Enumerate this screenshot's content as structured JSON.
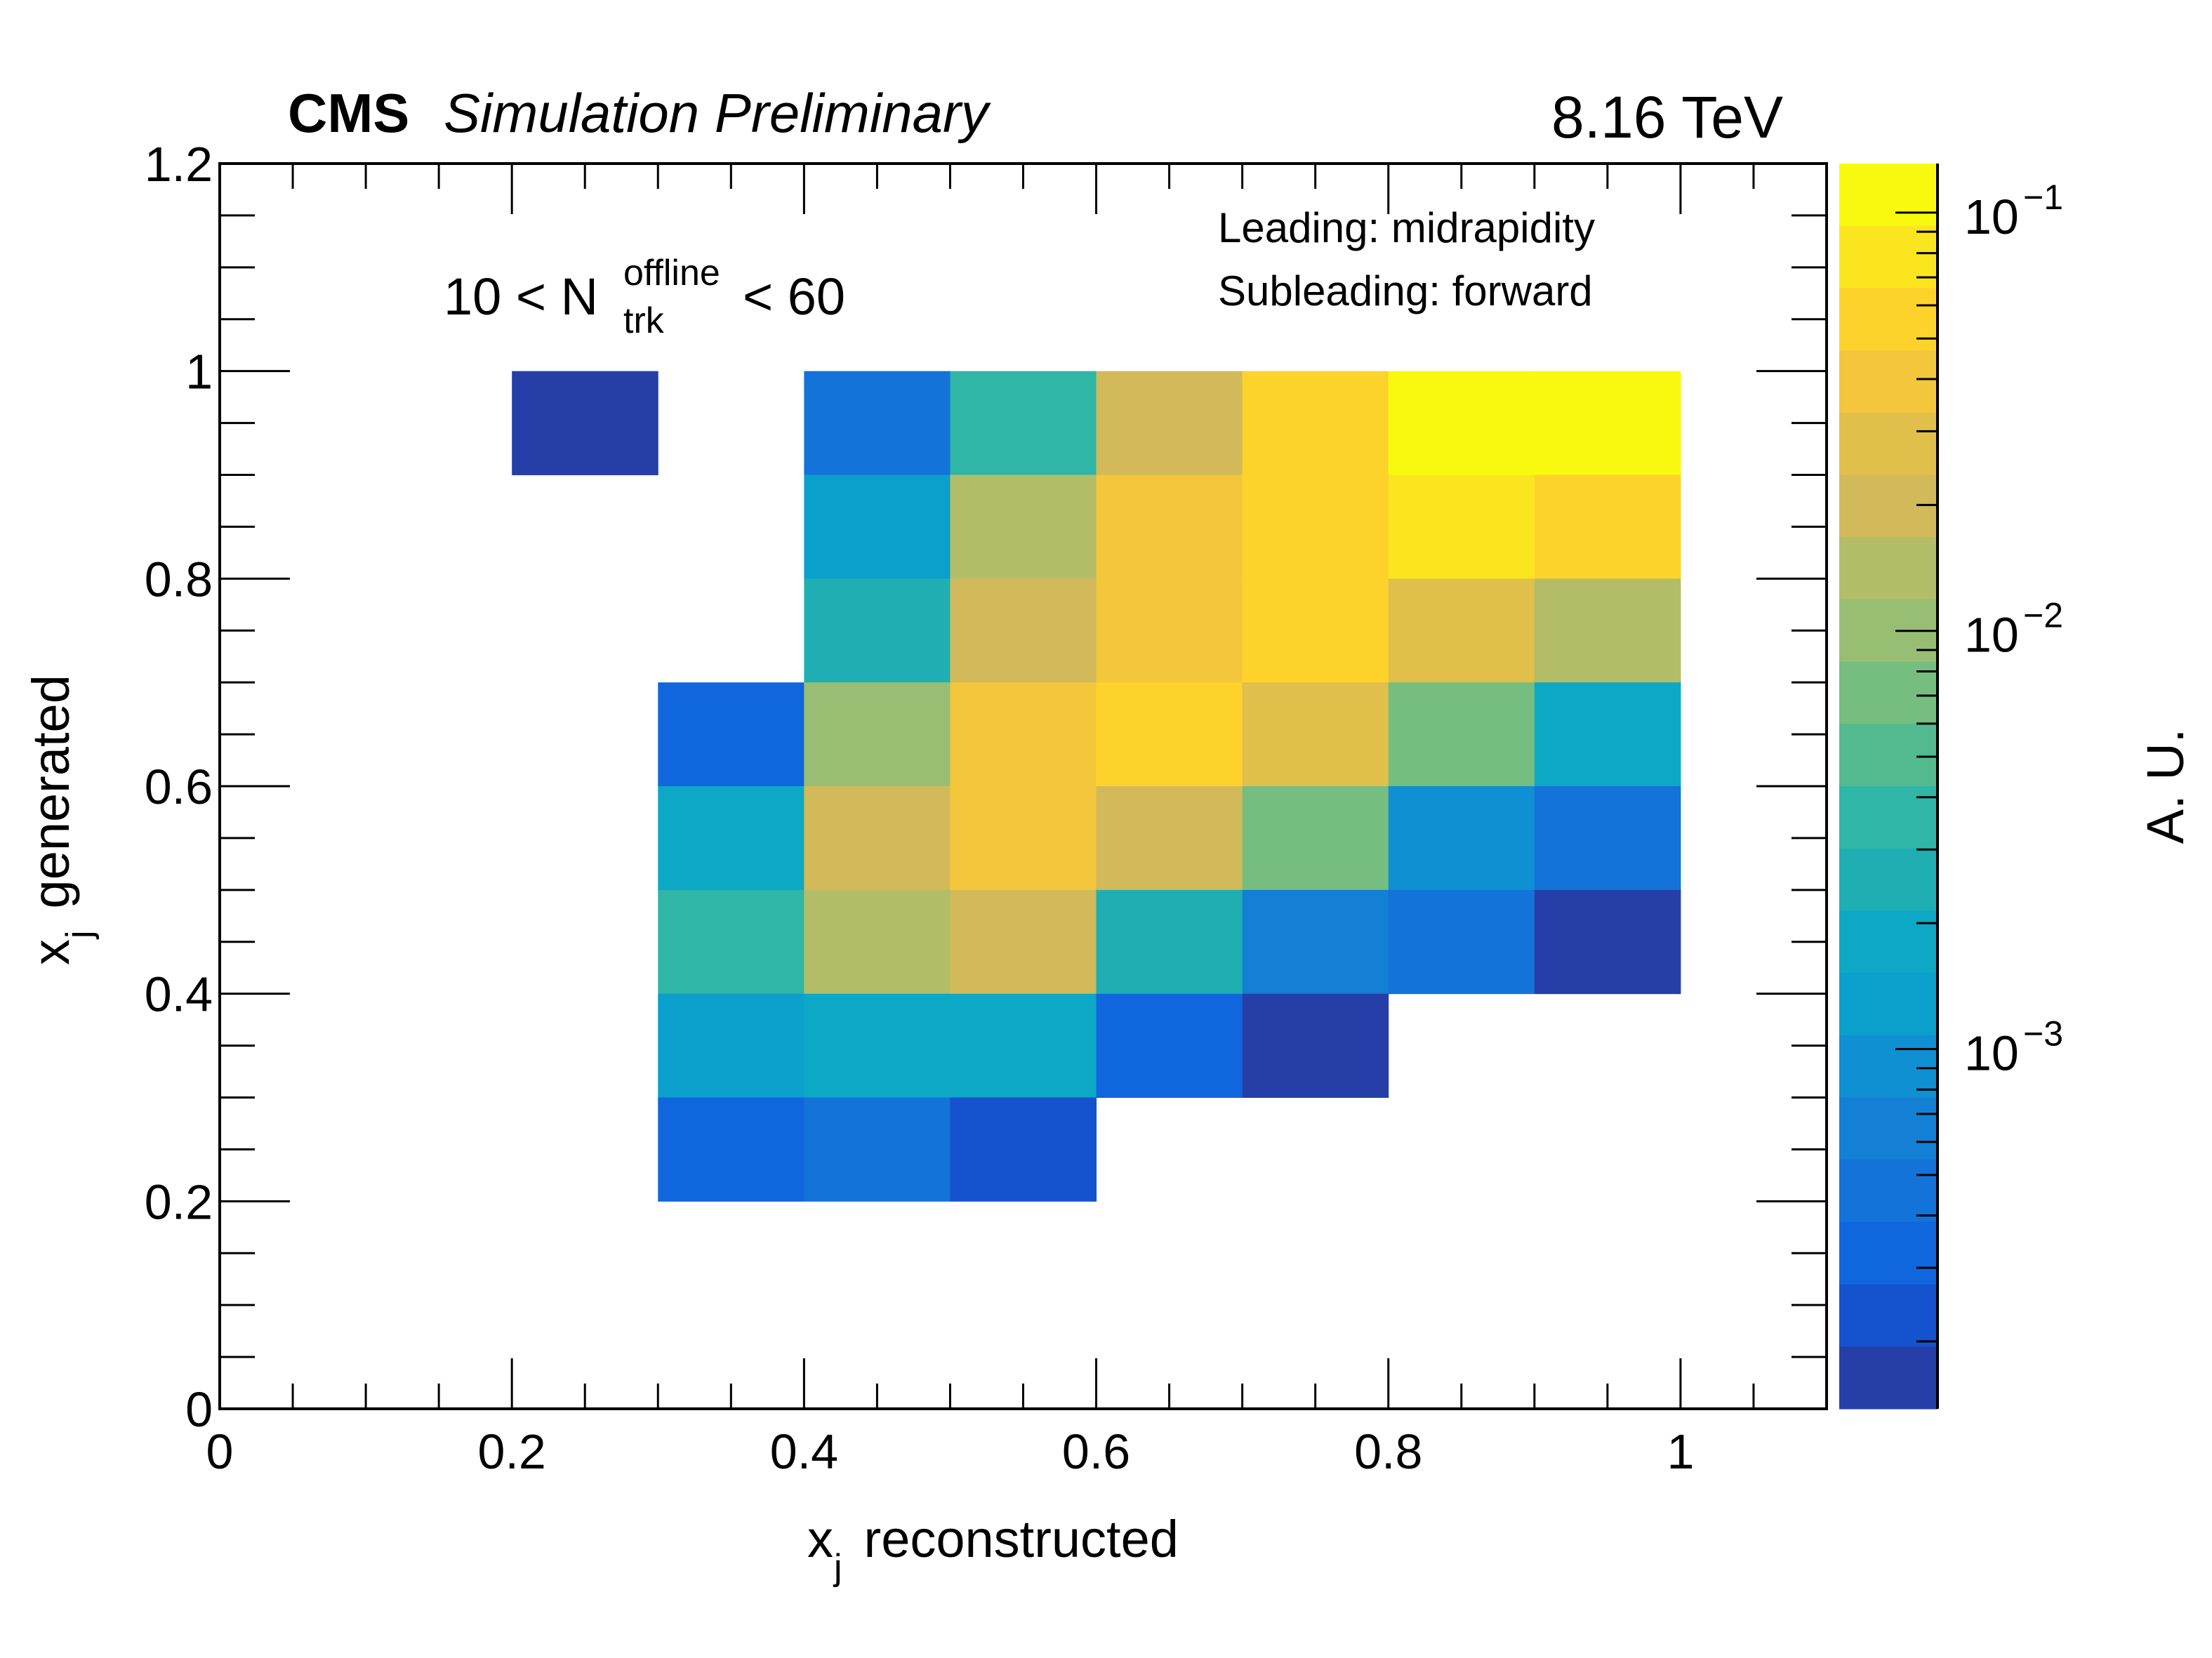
{
  "chart_data": {
    "type": "heatmap",
    "title_left": {
      "bold": "CMS",
      "italic": "Simulation Preliminary"
    },
    "title_right": "8.16 TeV",
    "xlabel": {
      "var": "x",
      "sub": "j",
      "rest": " reconstructed"
    },
    "ylabel": {
      "var": "x",
      "sub": "j",
      "rest": " generated"
    },
    "zlabel": "A. U.",
    "zscale": "log",
    "xlim": [
      0,
      1.1
    ],
    "ylim": [
      0,
      1.2
    ],
    "zlim": [
      0.000138,
      0.131
    ],
    "x_ticks": [
      {
        "value": 0,
        "label": "0"
      },
      {
        "value": 0.2,
        "label": "0.2"
      },
      {
        "value": 0.4,
        "label": "0.4"
      },
      {
        "value": 0.6,
        "label": "0.6"
      },
      {
        "value": 0.8,
        "label": "0.8"
      },
      {
        "value": 1.0,
        "label": "1"
      }
    ],
    "y_ticks": [
      {
        "value": 0,
        "label": "0"
      },
      {
        "value": 0.2,
        "label": "0.2"
      },
      {
        "value": 0.4,
        "label": "0.4"
      },
      {
        "value": 0.6,
        "label": "0.6"
      },
      {
        "value": 0.8,
        "label": "0.8"
      },
      {
        "value": 1.0,
        "label": "1"
      },
      {
        "value": 1.2,
        "label": "1.2"
      }
    ],
    "z_ticks": [
      {
        "value": 0.1,
        "base": "10",
        "exp": "−1"
      },
      {
        "value": 0.01,
        "base": "10",
        "exp": "−2"
      },
      {
        "value": 0.001,
        "base": "10",
        "exp": "−3"
      }
    ],
    "annotations": {
      "multiplicity": {
        "pre": "10 < N",
        "sup": "offline",
        "sub": "trk",
        "post": " < 60"
      },
      "lines": [
        "Leading: midrapidity",
        "Subleading: forward"
      ]
    },
    "bin_width": 0.1,
    "palette": [
      "#f9f90f",
      "#fbe51f",
      "#fdd32b",
      "#f3c63c",
      "#e1bf4b",
      "#d2ba5a",
      "#b3bd67",
      "#98be74",
      "#76bd80",
      "#53ba90",
      "#30b6a6",
      "#1fafb3",
      "#0da8c5",
      "#0aa0cb",
      "#0e90d2",
      "#137fd5",
      "#1373d9",
      "#1066dd",
      "#1552cd",
      "#263fa8"
    ],
    "cells": [
      {
        "x": 0.2,
        "y": 0.9,
        "z": 0.000163
      },
      {
        "x": 0.4,
        "y": 0.9,
        "z": 0.00046
      },
      {
        "x": 0.5,
        "y": 0.9,
        "z": 0.0037
      },
      {
        "x": 0.6,
        "y": 0.9,
        "z": 0.021
      },
      {
        "x": 0.7,
        "y": 0.9,
        "z": 0.059
      },
      {
        "x": 0.8,
        "y": 0.9,
        "z": 0.116
      },
      {
        "x": 0.9,
        "y": 0.9,
        "z": 0.116
      },
      {
        "x": 0.4,
        "y": 0.8,
        "z": 0.0013
      },
      {
        "x": 0.5,
        "y": 0.8,
        "z": 0.015
      },
      {
        "x": 0.6,
        "y": 0.8,
        "z": 0.042
      },
      {
        "x": 0.7,
        "y": 0.8,
        "z": 0.059
      },
      {
        "x": 0.8,
        "y": 0.8,
        "z": 0.083
      },
      {
        "x": 0.9,
        "y": 0.8,
        "z": 0.059
      },
      {
        "x": 0.4,
        "y": 0.7,
        "z": 0.0026
      },
      {
        "x": 0.5,
        "y": 0.7,
        "z": 0.021
      },
      {
        "x": 0.6,
        "y": 0.7,
        "z": 0.042
      },
      {
        "x": 0.7,
        "y": 0.7,
        "z": 0.059
      },
      {
        "x": 0.8,
        "y": 0.7,
        "z": 0.03
      },
      {
        "x": 0.9,
        "y": 0.7,
        "z": 0.015
      },
      {
        "x": 0.3,
        "y": 0.6,
        "z": 0.00033
      },
      {
        "x": 0.4,
        "y": 0.6,
        "z": 0.0105
      },
      {
        "x": 0.5,
        "y": 0.6,
        "z": 0.042
      },
      {
        "x": 0.6,
        "y": 0.6,
        "z": 0.059
      },
      {
        "x": 0.7,
        "y": 0.6,
        "z": 0.03
      },
      {
        "x": 0.8,
        "y": 0.6,
        "z": 0.0074
      },
      {
        "x": 0.9,
        "y": 0.6,
        "z": 0.0019
      },
      {
        "x": 0.3,
        "y": 0.5,
        "z": 0.0019
      },
      {
        "x": 0.4,
        "y": 0.5,
        "z": 0.021
      },
      {
        "x": 0.5,
        "y": 0.5,
        "z": 0.042
      },
      {
        "x": 0.6,
        "y": 0.5,
        "z": 0.021
      },
      {
        "x": 0.7,
        "y": 0.5,
        "z": 0.0074
      },
      {
        "x": 0.8,
        "y": 0.5,
        "z": 0.00093
      },
      {
        "x": 0.9,
        "y": 0.5,
        "z": 0.00046
      },
      {
        "x": 0.3,
        "y": 0.4,
        "z": 0.0037
      },
      {
        "x": 0.4,
        "y": 0.4,
        "z": 0.015
      },
      {
        "x": 0.5,
        "y": 0.4,
        "z": 0.021
      },
      {
        "x": 0.6,
        "y": 0.4,
        "z": 0.0026
      },
      {
        "x": 0.7,
        "y": 0.4,
        "z": 0.00066
      },
      {
        "x": 0.8,
        "y": 0.4,
        "z": 0.00046
      },
      {
        "x": 0.9,
        "y": 0.4,
        "z": 0.000163
      },
      {
        "x": 0.3,
        "y": 0.3,
        "z": 0.0013
      },
      {
        "x": 0.4,
        "y": 0.3,
        "z": 0.0019
      },
      {
        "x": 0.5,
        "y": 0.3,
        "z": 0.0019
      },
      {
        "x": 0.6,
        "y": 0.3,
        "z": 0.00033
      },
      {
        "x": 0.7,
        "y": 0.3,
        "z": 0.000163
      },
      {
        "x": 0.3,
        "y": 0.2,
        "z": 0.00033
      },
      {
        "x": 0.4,
        "y": 0.2,
        "z": 0.00046
      },
      {
        "x": 0.5,
        "y": 0.2,
        "z": 0.00023
      }
    ]
  }
}
